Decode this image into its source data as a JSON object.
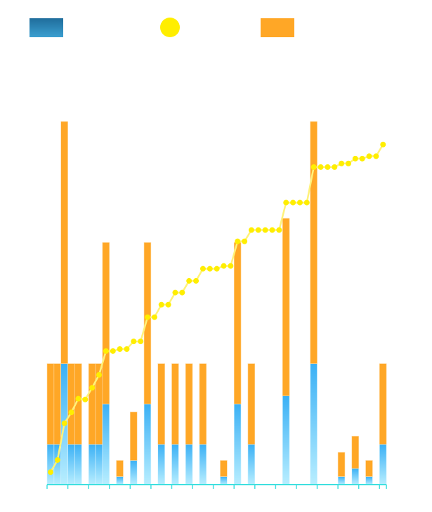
{
  "chart_data": {
    "type": "bar",
    "stacked": true,
    "title": "",
    "xlabel": "",
    "ylabel": "",
    "ylim": [
      0,
      9
    ],
    "grid": false,
    "legend_placement": "top",
    "colors": {
      "series_a": "#2a86c0",
      "series_b": "#ffa726",
      "line": "#ffee00",
      "axis": "#40e0e0"
    },
    "categories_count": 49,
    "series": [
      {
        "type": "bar",
        "values": [
          1,
          1,
          3,
          1,
          1,
          0,
          1,
          1,
          2,
          0,
          0.2,
          0,
          0.6,
          0,
          2,
          0,
          1,
          0,
          1,
          0,
          1,
          0,
          1,
          0,
          0,
          0.2,
          0,
          2,
          0,
          1,
          0,
          0,
          0,
          0,
          2.2,
          0,
          0,
          0,
          3,
          0,
          0,
          0,
          0.2,
          0,
          0.4,
          0,
          0.2,
          0,
          1
        ]
      },
      {
        "type": "bar",
        "values": [
          2,
          2,
          6,
          2,
          2,
          0,
          2,
          2,
          4,
          0,
          0.4,
          0,
          1.2,
          0,
          4,
          0,
          2,
          0,
          2,
          0,
          2,
          0,
          2,
          0,
          0,
          0.4,
          0,
          4,
          0,
          2,
          0,
          0,
          0,
          0,
          4.4,
          0,
          0,
          0,
          6,
          0,
          0,
          0,
          0.6,
          0,
          0.8,
          0,
          0.4,
          0,
          2
        ]
      },
      {
        "type": "line",
        "values": [
          0.31,
          0.61,
          1.52,
          1.79,
          2.13,
          2.11,
          2.4,
          2.72,
          3.31,
          3.31,
          3.36,
          3.36,
          3.55,
          3.55,
          4.15,
          4.15,
          4.46,
          4.46,
          4.76,
          4.76,
          5.05,
          5.05,
          5.35,
          5.35,
          5.35,
          5.42,
          5.42,
          6.03,
          6.03,
          6.31,
          6.31,
          6.31,
          6.31,
          6.31,
          6.99,
          6.99,
          6.99,
          6.99,
          7.87,
          7.87,
          7.87,
          7.87,
          7.96,
          7.96,
          8.08,
          8.08,
          8.14,
          8.14,
          8.43
        ]
      }
    ]
  }
}
